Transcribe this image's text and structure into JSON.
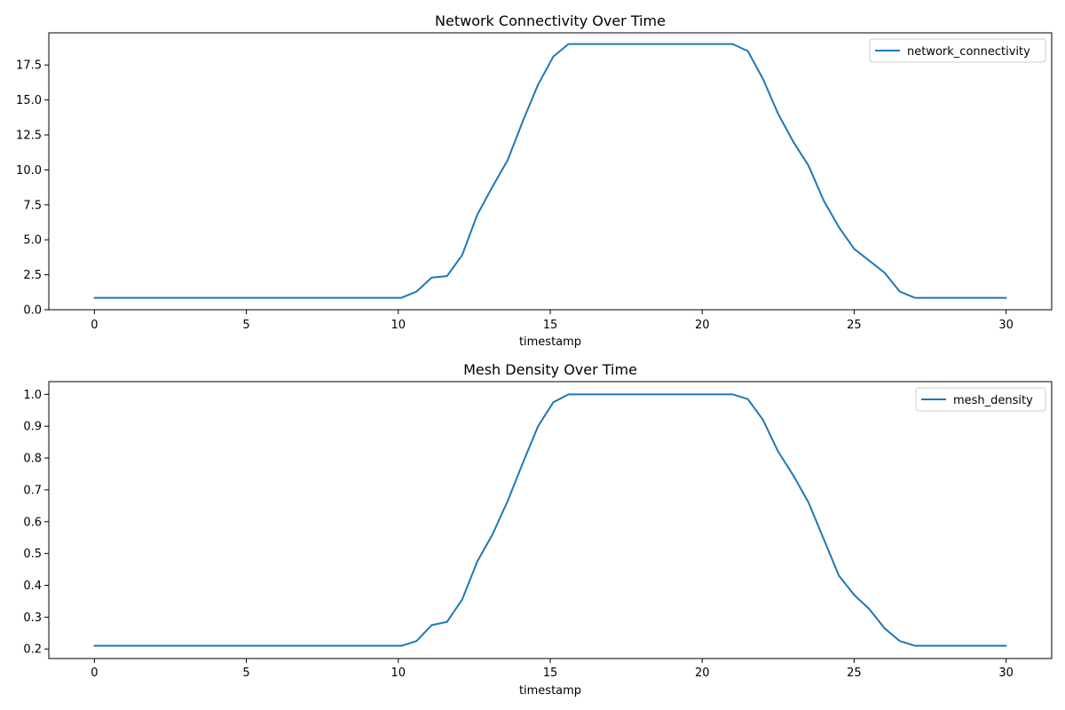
{
  "chart_data": [
    {
      "type": "line",
      "title": "Network Connectivity Over Time",
      "xlabel": "timestamp",
      "ylabel": "",
      "xlim": [
        -1.5,
        31.5
      ],
      "ylim": [
        0,
        19.8
      ],
      "xticks": [
        0,
        5,
        10,
        15,
        20,
        25,
        30
      ],
      "yticks": [
        0.0,
        2.5,
        5.0,
        7.5,
        10.0,
        12.5,
        15.0,
        17.5
      ],
      "ytick_labels": [
        "0.0",
        "2.5",
        "5.0",
        "7.5",
        "10.0",
        "12.5",
        "15.0",
        "17.5"
      ],
      "legend": "top-right",
      "grid": false,
      "series": [
        {
          "name": "network_connectivity",
          "color": "#1f77b4",
          "x": [
            0,
            10.1,
            10.6,
            11.1,
            11.6,
            12.1,
            12.6,
            13.1,
            13.6,
            14.1,
            14.6,
            15.1,
            15.6,
            16.1,
            21.0,
            21.5,
            22.0,
            22.5,
            23.0,
            23.5,
            24.0,
            24.5,
            25.0,
            25.5,
            26.0,
            26.5,
            27.0,
            30.0
          ],
          "values": [
            0.85,
            0.85,
            1.3,
            2.3,
            2.4,
            3.9,
            6.8,
            8.8,
            10.7,
            13.5,
            16.1,
            18.1,
            19.0,
            19.0,
            19.0,
            18.5,
            16.5,
            14.0,
            12.0,
            10.3,
            7.8,
            5.9,
            4.35,
            3.5,
            2.65,
            1.3,
            0.85,
            0.85
          ]
        }
      ]
    },
    {
      "type": "line",
      "title": "Mesh Density Over Time",
      "xlabel": "timestamp",
      "ylabel": "",
      "xlim": [
        -1.5,
        31.5
      ],
      "ylim": [
        0.17,
        1.04
      ],
      "xticks": [
        0,
        5,
        10,
        15,
        20,
        25,
        30
      ],
      "yticks": [
        0.2,
        0.3,
        0.4,
        0.5,
        0.6,
        0.7,
        0.8,
        0.9,
        1.0
      ],
      "ytick_labels": [
        "0.2",
        "0.3",
        "0.4",
        "0.5",
        "0.6",
        "0.7",
        "0.8",
        "0.9",
        "1.0"
      ],
      "legend": "top-right",
      "grid": false,
      "series": [
        {
          "name": "mesh_density",
          "color": "#1f77b4",
          "x": [
            0,
            10.1,
            10.6,
            11.1,
            11.6,
            12.1,
            12.6,
            13.1,
            13.6,
            14.1,
            14.6,
            15.1,
            15.6,
            16.1,
            21.0,
            21.5,
            22.0,
            22.5,
            23.0,
            23.5,
            24.0,
            24.5,
            25.0,
            25.5,
            26.0,
            26.5,
            27.0,
            30.0
          ],
          "values": [
            0.21,
            0.21,
            0.225,
            0.275,
            0.285,
            0.355,
            0.475,
            0.56,
            0.665,
            0.785,
            0.9,
            0.975,
            1.0,
            1.0,
            1.0,
            0.985,
            0.92,
            0.82,
            0.745,
            0.66,
            0.545,
            0.43,
            0.37,
            0.325,
            0.265,
            0.225,
            0.21,
            0.21
          ]
        }
      ]
    }
  ]
}
